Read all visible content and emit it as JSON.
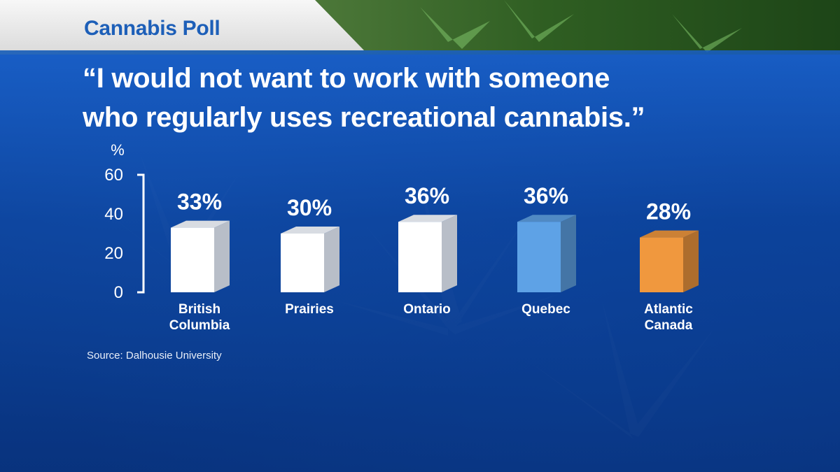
{
  "header": {
    "tab_title": "Cannabis Poll"
  },
  "quote": {
    "line1": "“I would not want to work with someone",
    "line2": "who regularly uses recreational cannabis.”"
  },
  "source": "Source: Dalhousie University",
  "colors": {
    "default_bar": "#ffffff",
    "quebec_bar": "#5ea2e6",
    "atlantic_bar": "#f0983e",
    "tab_title": "#1d5fb8"
  },
  "chart_data": {
    "type": "bar",
    "title": "“I would not want to work with someone who regularly uses recreational cannabis.”",
    "ylabel": "%",
    "ylim": [
      0,
      60
    ],
    "yticks": [
      0,
      20,
      40,
      60
    ],
    "grid": false,
    "categories": [
      {
        "line1": "British",
        "line2": "Columbia"
      },
      {
        "line1": "Prairies",
        "line2": ""
      },
      {
        "line1": "Ontario",
        "line2": ""
      },
      {
        "line1": "Quebec",
        "line2": ""
      },
      {
        "line1": "Atlantic",
        "line2": "Canada"
      }
    ],
    "values": [
      33,
      30,
      36,
      36,
      28
    ],
    "data_labels": [
      "33%",
      "30%",
      "36%",
      "36%",
      "28%"
    ],
    "bar_colors": [
      "#ffffff",
      "#ffffff",
      "#ffffff",
      "#5ea2e6",
      "#f0983e"
    ]
  }
}
